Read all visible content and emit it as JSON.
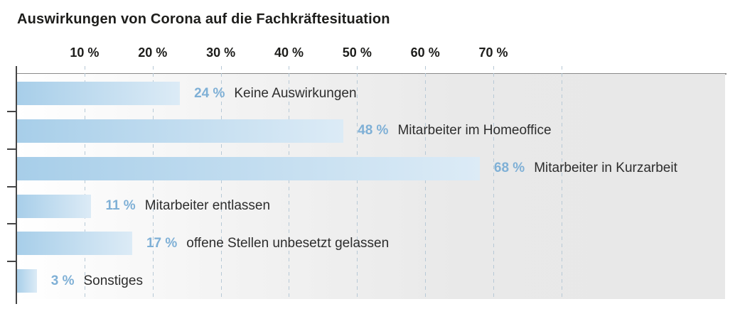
{
  "title": "Auswirkungen von Corona auf die Fachkräftesituation",
  "chart_data": {
    "type": "bar",
    "orientation": "horizontal",
    "title": "Auswirkungen von Corona auf die Fachkräftesituation",
    "items": [
      {
        "label": "Keine Auswirkungen",
        "value": 24,
        "value_text": "24 %"
      },
      {
        "label": "Mitarbeiter im Homeoffice",
        "value": 48,
        "value_text": "48 %"
      },
      {
        "label": "Mitarbeiter in Kurzarbeit",
        "value": 68,
        "value_text": "68 %"
      },
      {
        "label": "Mitarbeiter entlassen",
        "value": 11,
        "value_text": "11 %"
      },
      {
        "label": "offene Stellen unbesetzt gelassen",
        "value": 17,
        "value_text": "17 %"
      },
      {
        "label": "Sonstiges",
        "value": 3,
        "value_text": "3 %"
      }
    ],
    "x_ticks": [
      {
        "value": 10,
        "label": "10 %"
      },
      {
        "value": 20,
        "label": "20 %"
      },
      {
        "value": 30,
        "label": "30 %"
      },
      {
        "value": 40,
        "label": "40 %"
      },
      {
        "value": 50,
        "label": "50 %"
      },
      {
        "value": 60,
        "label": "60 %"
      },
      {
        "value": 70,
        "label": "70 %"
      }
    ],
    "gridline_values": [
      10,
      20,
      30,
      40,
      50,
      60,
      70,
      80
    ],
    "xlim": [
      0,
      104
    ],
    "grid": "dashed-vertical",
    "legend": "none",
    "colors": {
      "bar_gradient_start": "#a7cee9",
      "bar_gradient_end": "#dcebf6",
      "value_text": "#7fb0d6",
      "label_text": "#2d2d2d",
      "gridline": "#b7c9d6",
      "axis": "#454545",
      "top_border": "#8a8a8a",
      "plot_bg_start": "#ffffff",
      "plot_bg_end": "#e8e8e8",
      "title_text": "#1d1d1b"
    }
  }
}
